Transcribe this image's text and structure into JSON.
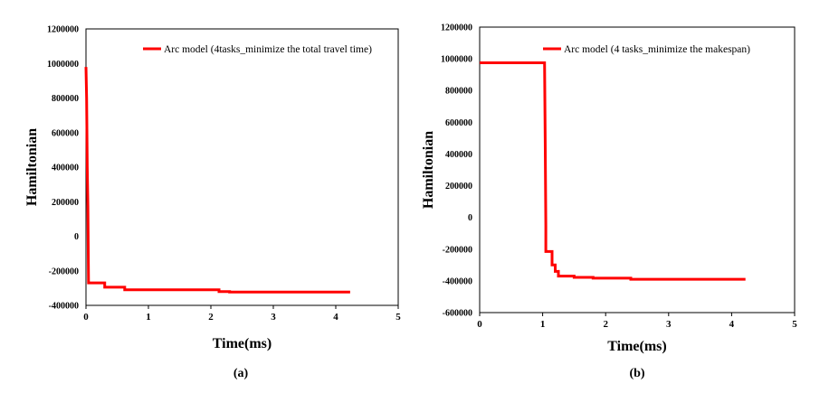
{
  "chart_data": [
    {
      "type": "line",
      "caption": "(a)",
      "xlabel": "Time(ms)",
      "ylabel": "Hamiltonian",
      "xlim": [
        0,
        5
      ],
      "ylim": [
        -400000,
        1200000
      ],
      "x_ticks": [
        "0",
        "1",
        "2",
        "3",
        "4",
        "5"
      ],
      "y_ticks": [
        "-400000",
        "-200000",
        "0",
        "200000",
        "400000",
        "600000",
        "800000",
        "1000000",
        "1200000"
      ],
      "legend_position": "top-right",
      "series": [
        {
          "name": "Arc model (4tasks_minimize the total travel time)",
          "color": "#ff0000",
          "x": [
            0,
            0.01,
            0.02,
            0.03,
            0.04,
            0.05,
            0.3,
            0.3,
            0.62,
            0.62,
            2.13,
            2.13,
            2.3,
            2.3,
            4.23
          ],
          "y": [
            980000,
            800000,
            400000,
            175000,
            -270000,
            -270000,
            -270000,
            -295000,
            -295000,
            -310000,
            -310000,
            -320000,
            -320000,
            -323000,
            -323000
          ]
        }
      ]
    },
    {
      "type": "line",
      "caption": "(b)",
      "xlabel": "Time(ms)",
      "ylabel": "Hamiltonian",
      "xlim": [
        0,
        5
      ],
      "ylim": [
        -600000,
        1200000
      ],
      "x_ticks": [
        "0",
        "1",
        "2",
        "3",
        "4",
        "5"
      ],
      "y_ticks": [
        "-600000",
        "-400000",
        "-200000",
        "0",
        "200000",
        "400000",
        "600000",
        "800000",
        "1000000",
        "1200000"
      ],
      "legend_position": "top-right",
      "series": [
        {
          "name": "Arc model (4 tasks_minimize the makespan)",
          "color": "#ff0000",
          "x": [
            0,
            1.03,
            1.04,
            1.05,
            1.05,
            1.15,
            1.15,
            1.2,
            1.2,
            1.25,
            1.25,
            1.5,
            1.5,
            1.8,
            1.8,
            2.4,
            2.4,
            4.22
          ],
          "y": [
            975000,
            975000,
            500000,
            -50000,
            -215000,
            -215000,
            -300000,
            -300000,
            -340000,
            -340000,
            -370000,
            -370000,
            -378000,
            -378000,
            -383000,
            -383000,
            -390000,
            -390000
          ]
        }
      ]
    }
  ]
}
